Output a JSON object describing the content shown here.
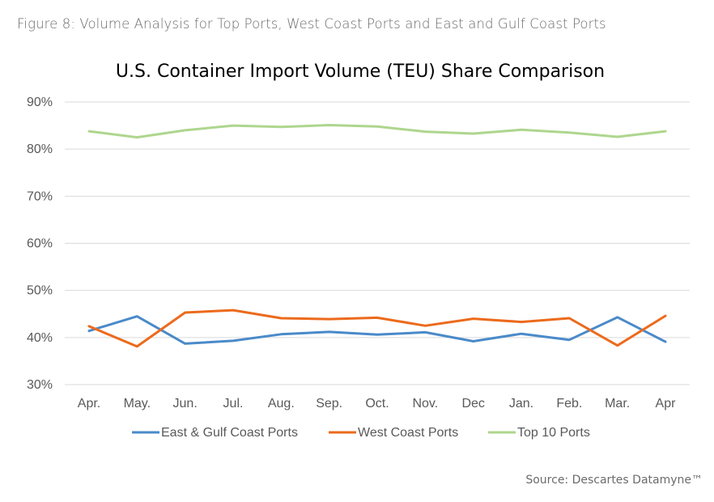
{
  "figure_caption": "Figure 8: Volume Analysis for Top Ports, West Coast Ports and East and Gulf Coast Ports",
  "source_note": "Source: Descartes Datamyne™",
  "chart_data": {
    "type": "line",
    "title": "U.S. Container Import Volume (TEU) Share Comparison",
    "xlabel": "",
    "ylabel": "",
    "categories": [
      "Apr.",
      "May.",
      "Jun.",
      "Jul.",
      "Aug.",
      "Sep.",
      "Oct.",
      "Nov.",
      "Dec",
      "Jan.",
      "Feb.",
      "Mar.",
      "Apr"
    ],
    "ylim": [
      0.3,
      0.9
    ],
    "yticks": [
      "30%",
      "40%",
      "50%",
      "60%",
      "70%",
      "80%",
      "90%"
    ],
    "grid": "horizontal",
    "legend_position": "bottom",
    "series": [
      {
        "name": "East & Gulf Coast Ports",
        "color": "#4a8ac9",
        "values": [
          0.414,
          0.445,
          0.387,
          0.393,
          0.407,
          0.412,
          0.406,
          0.411,
          0.392,
          0.408,
          0.395,
          0.443,
          0.391
        ]
      },
      {
        "name": "West Coast Ports",
        "color": "#ec6a1c",
        "values": [
          0.424,
          0.381,
          0.453,
          0.458,
          0.441,
          0.439,
          0.442,
          0.425,
          0.44,
          0.433,
          0.441,
          0.383,
          0.446
        ]
      },
      {
        "name": "Top 10 Ports",
        "color": "#aed68e",
        "values": [
          0.838,
          0.825,
          0.84,
          0.85,
          0.847,
          0.851,
          0.848,
          0.837,
          0.833,
          0.841,
          0.835,
          0.826,
          0.838
        ]
      }
    ]
  }
}
